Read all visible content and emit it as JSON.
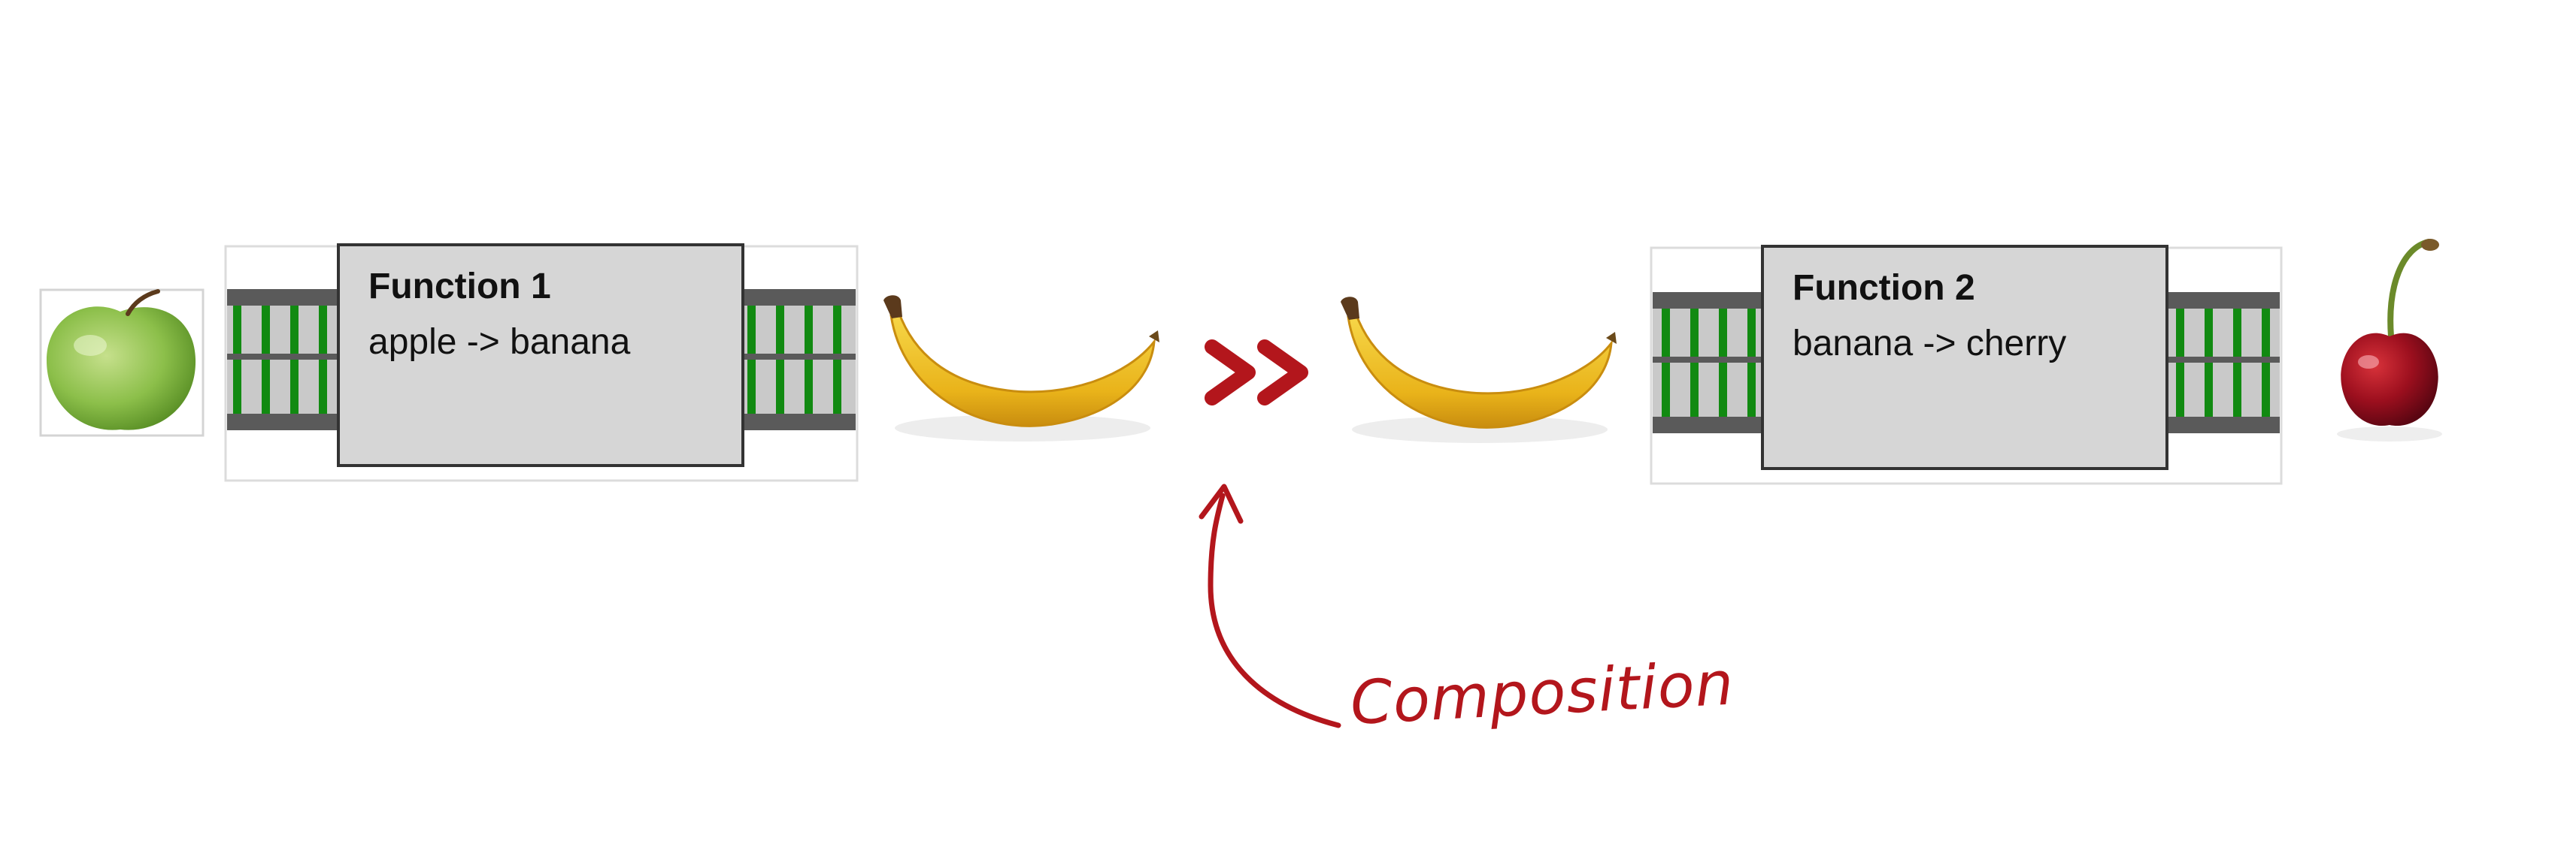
{
  "function1": {
    "title": "Function 1",
    "signature": "apple -> banana"
  },
  "function2": {
    "title": "Function 2",
    "signature": "banana -> cherry"
  },
  "operator": ">>",
  "annotation": "Composition",
  "icons": {
    "input": "apple-icon",
    "output1": "banana-icon",
    "input2": "banana-icon",
    "output2": "cherry-icon"
  },
  "colors": {
    "box_fill": "#d6d6d6",
    "rail_green": "#118a11",
    "rail_gray": "#5a5a5a",
    "accent_red": "#b3161c"
  }
}
